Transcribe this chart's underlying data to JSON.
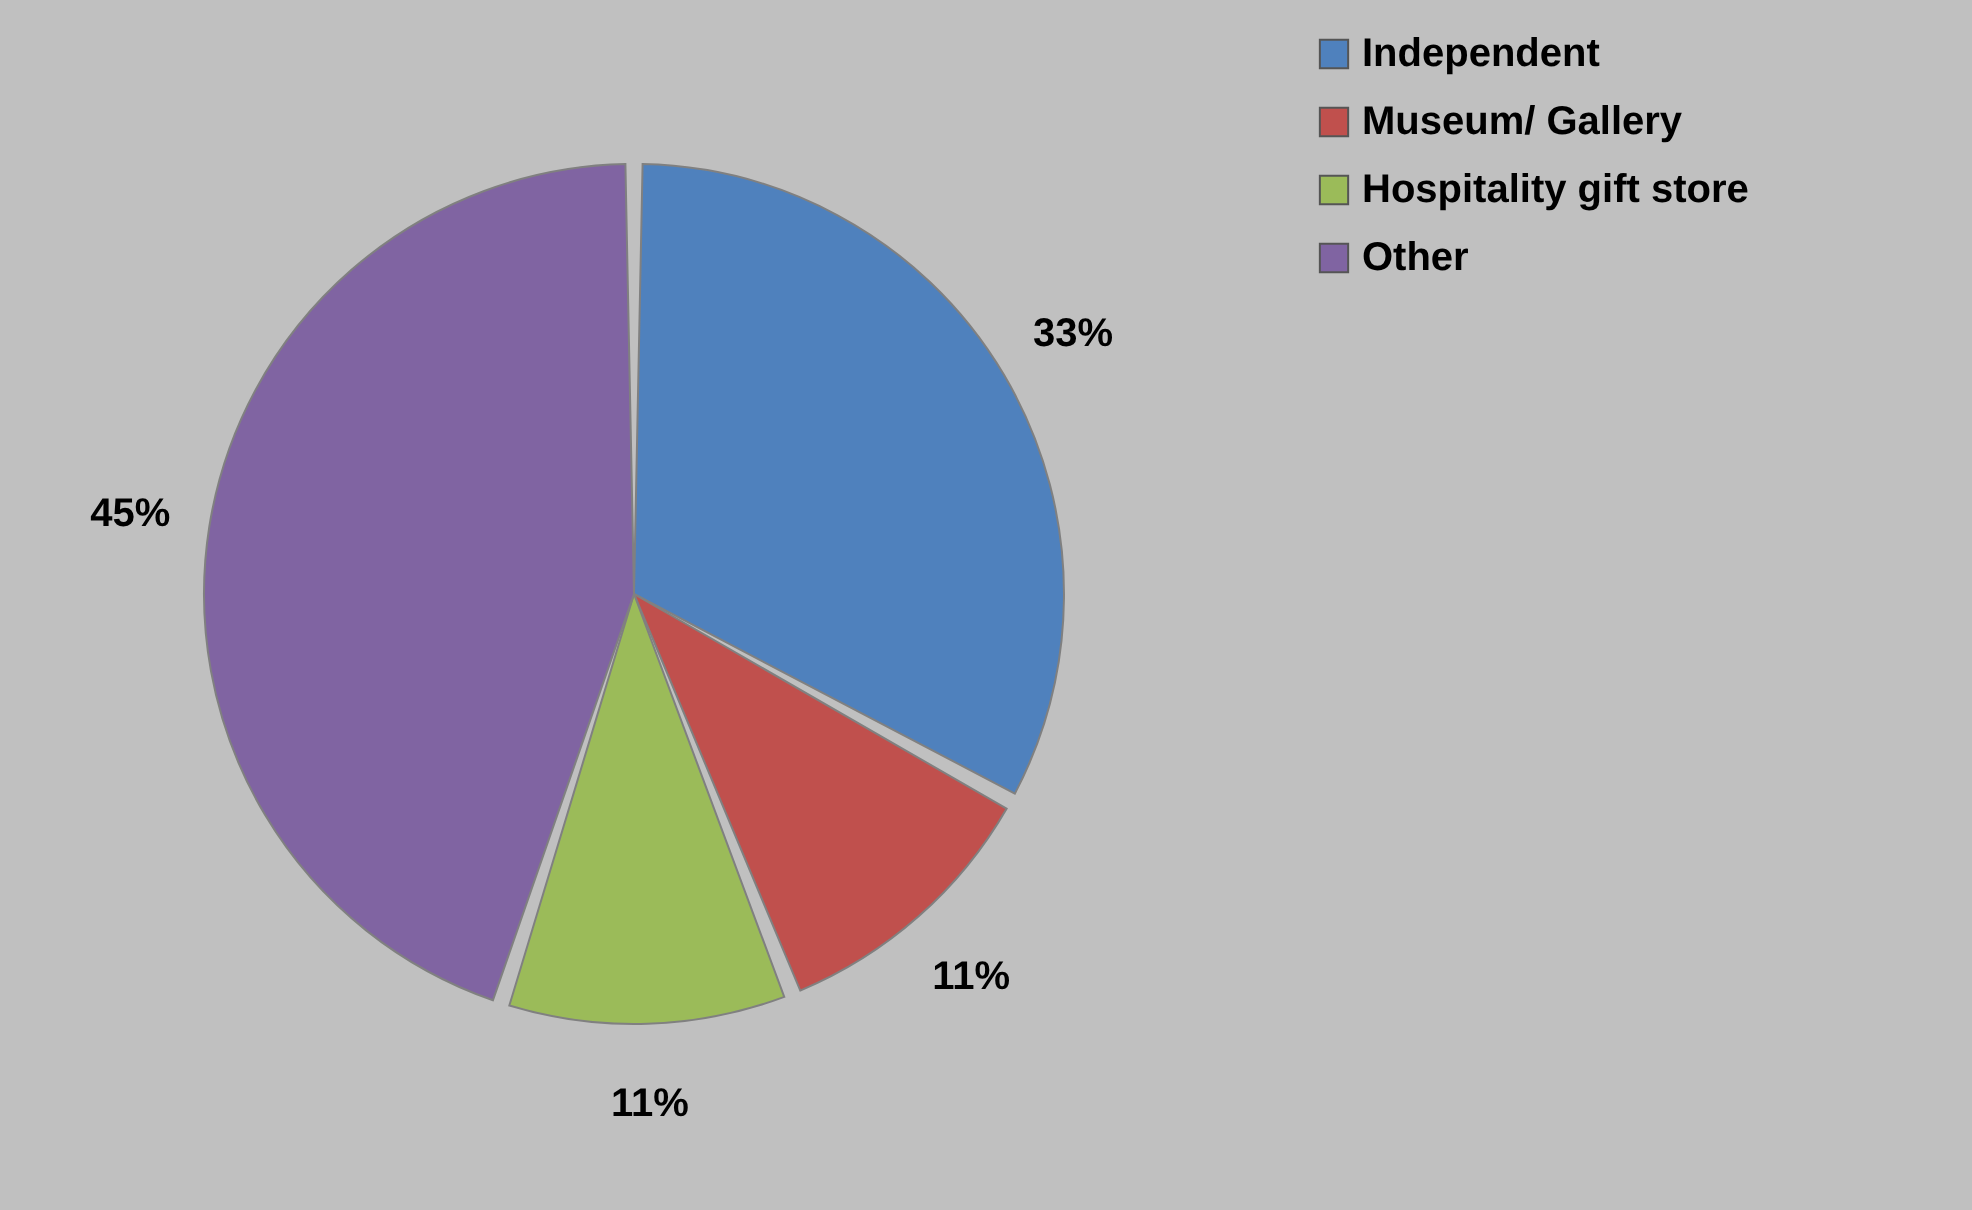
{
  "chart_data": {
    "type": "pie",
    "categories": [
      "Independent",
      "Museum/ Gallery",
      "Hospitality gift store",
      "Other"
    ],
    "values": [
      33,
      11,
      11,
      45
    ],
    "colors": [
      "#4f81bd",
      "#c0504d",
      "#9bbb59",
      "#8064a2"
    ],
    "value_labels": [
      "33%",
      "11%",
      "11%",
      "45%"
    ],
    "legend": "right"
  }
}
